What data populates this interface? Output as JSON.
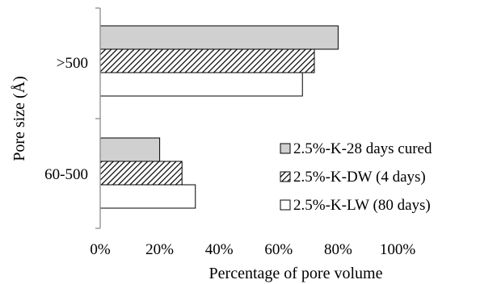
{
  "chart_data": {
    "type": "bar",
    "orientation": "horizontal",
    "categories": [
      ">500",
      "60-500"
    ],
    "series": [
      {
        "name": "2.5%-K-28 days cured",
        "values": [
          80,
          20
        ],
        "fill": "#d0d0d0",
        "pattern": "solid"
      },
      {
        "name": "2.5%-K-DW (4 days)",
        "values": [
          72,
          27.5
        ],
        "fill": "#ffffff",
        "pattern": "diagonal-hatch"
      },
      {
        "name": "2.5%-K-LW (80 days)",
        "values": [
          68,
          32
        ],
        "fill": "#ffffff",
        "pattern": "none"
      }
    ],
    "xlabel": "Percentage of pore volume",
    "ylabel": "Pore size (Å)",
    "xlim": [
      0,
      100
    ],
    "xticks": [
      "0%",
      "20%",
      "40%",
      "60%",
      "80%",
      "100%"
    ],
    "grid": false,
    "legend_position": "bottom-right"
  }
}
